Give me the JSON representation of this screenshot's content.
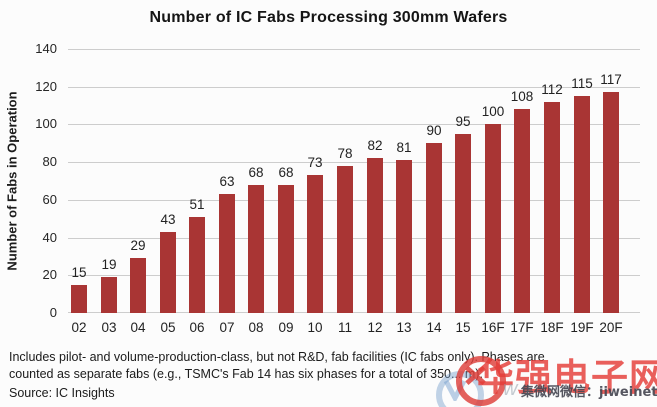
{
  "chart_data": {
    "type": "bar",
    "title": "Number of IC Fabs Processing 300mm Wafers",
    "ylabel": "Number of Fabs in Operation",
    "xlabel": "",
    "categories": [
      "02",
      "03",
      "04",
      "05",
      "06",
      "07",
      "08",
      "09",
      "10",
      "11",
      "12",
      "13",
      "14",
      "15",
      "16F",
      "17F",
      "18F",
      "19F",
      "20F"
    ],
    "values": [
      15,
      19,
      29,
      43,
      51,
      63,
      68,
      68,
      73,
      78,
      82,
      81,
      90,
      95,
      100,
      108,
      112,
      115,
      117
    ],
    "ylim": [
      0,
      140
    ],
    "ytick_step": 20,
    "grid": "horizontal gridlines on",
    "legend": "none",
    "bar_color": "#a93534",
    "gridline_color": "#cdcdcd"
  },
  "footnote": {
    "line1": "Includes pilot- and volume-production-class, but not R&D, fab facilities (IC fabs only).  Phases are",
    "line2": "counted as separate fabs (e.g., TSMC's Fab 14 has six phases for a total of 350... m)."
  },
  "source": "Source: IC Insights",
  "watermark": {
    "brand_text": "华强电子网",
    "brand_color": "#e43c37",
    "ghost_letter": "w",
    "wechat_text": "集微网微信：jiweinet"
  }
}
